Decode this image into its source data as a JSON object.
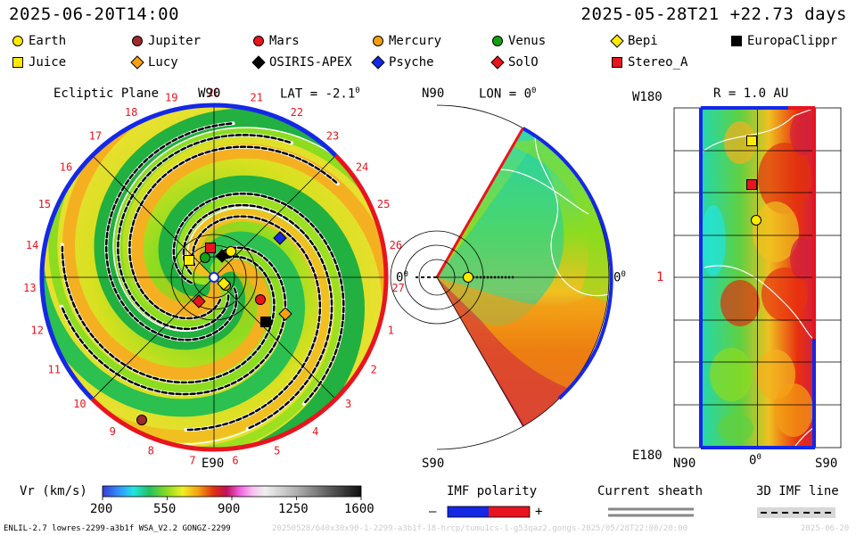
{
  "header": {
    "model_time": "2025-06-20T14:00",
    "run_time": "2025-05-28T21 +22.73 days"
  },
  "legend": [
    {
      "name": "Earth",
      "shape": "circle",
      "color": "#ffea00"
    },
    {
      "name": "Jupiter",
      "shape": "circle",
      "color": "#a0282a"
    },
    {
      "name": "Mars",
      "shape": "circle",
      "color": "#e8141e"
    },
    {
      "name": "Mercury",
      "shape": "circle",
      "color": "#f4a012"
    },
    {
      "name": "Venus",
      "shape": "circle",
      "color": "#14a014"
    },
    {
      "name": "Bepi",
      "shape": "diamond",
      "color": "#ffea00"
    },
    {
      "name": "EuropaClippr",
      "shape": "square",
      "color": "#000000"
    },
    {
      "name": "Juice",
      "shape": "square",
      "color": "#ffea00"
    },
    {
      "name": "Lucy",
      "shape": "diamond",
      "color": "#f4a012"
    },
    {
      "name": "OSIRIS-APEX",
      "shape": "diamond",
      "color": "#000000"
    },
    {
      "name": "Psyche",
      "shape": "diamond",
      "color": "#1428e6"
    },
    {
      "name": "SolO",
      "shape": "diamond",
      "color": "#e8141e"
    },
    {
      "name": "Stereo_A",
      "shape": "square",
      "color": "#e8141e"
    }
  ],
  "panels": {
    "ecliptic": {
      "title": "Ecliptic Plane",
      "top_label": "W90",
      "lat_label": "LAT = -2.1",
      "lat_deg": "0",
      "bottom_label": "E90",
      "right_label": "0",
      "right_deg": "0",
      "carrington_hours": [
        "20",
        "21",
        "22",
        "23",
        "24",
        "25",
        "26",
        "27",
        "1",
        "2",
        "3",
        "4",
        "5",
        "6",
        "7",
        "8",
        "9",
        "10",
        "11",
        "12",
        "13",
        "14",
        "15",
        "16",
        "17",
        "18",
        "19"
      ]
    },
    "meridional": {
      "top_label": "N90",
      "lon_label": "LON = 0",
      "lon_deg": "0",
      "bottom_label": "S90",
      "right_label": "0",
      "right_deg": "0"
    },
    "map": {
      "top_left": "W180",
      "r_label": "R = 1.0 AU",
      "mid_left": "1",
      "bottom_left": "E180",
      "x_left": "N90",
      "x_mid": "0",
      "x_mid_deg": "0",
      "x_right": "S90"
    }
  },
  "colorbar": {
    "label": "Vr (km/s)",
    "ticks": [
      "200",
      "550",
      "900",
      "1250",
      "1600"
    ],
    "range": [
      200,
      1600
    ]
  },
  "imf_polarity": {
    "label": "IMF polarity",
    "minus": "–",
    "plus": "+",
    "neg_color": "#1428e6",
    "pos_color": "#e8141e"
  },
  "current_sheath": {
    "label": "Current sheath"
  },
  "imf_line": {
    "label": "3D IMF line"
  },
  "footer": {
    "left": "ENLIL-2.7 lowres-2299-a3b1f WSA_V2.2 GONGZ-2299",
    "mid": "20250528/640x30x90-1-2299-a3b1f-18-hrcp/tumu1cs-1-g53qaz2.gongs-2025/05/28T22:00/20:00",
    "right": "2025-06-20"
  }
}
